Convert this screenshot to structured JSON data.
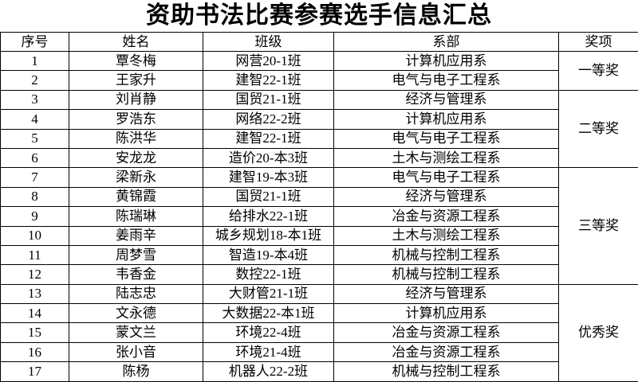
{
  "title": "资助书法比赛参赛选手信息汇总",
  "headers": [
    "序号",
    "姓名",
    "班级",
    "系部",
    "奖项"
  ],
  "rows": [
    {
      "no": "1",
      "name": "覃冬梅",
      "class": "网营20-1班",
      "dept": "计算机应用系"
    },
    {
      "no": "2",
      "name": "王家升",
      "class": "建智22-1班",
      "dept": "电气与电子工程系"
    },
    {
      "no": "3",
      "name": "刘肖静",
      "class": "国贸21-1班",
      "dept": "经济与管理系"
    },
    {
      "no": "4",
      "name": "罗浩东",
      "class": "网络22-2班",
      "dept": "计算机应用系"
    },
    {
      "no": "5",
      "name": "陈洪华",
      "class": "建智22-1班",
      "dept": "电气与电子工程系"
    },
    {
      "no": "6",
      "name": "安龙龙",
      "class": "造价20-本3班",
      "dept": "土木与测绘工程系"
    },
    {
      "no": "7",
      "name": "梁新永",
      "class": "建智19-本3班",
      "dept": "电气与电子工程系"
    },
    {
      "no": "8",
      "name": "黄锦霞",
      "class": "国贸21-1班",
      "dept": "经济与管理系"
    },
    {
      "no": "9",
      "name": "陈瑞琳",
      "class": "给排水22-1班",
      "dept": "冶金与资源工程系"
    },
    {
      "no": "10",
      "name": "姜雨辛",
      "class": "城乡规划18-本1班",
      "dept": "土木与测绘工程系"
    },
    {
      "no": "11",
      "name": "周梦雪",
      "class": "智造19-本4班",
      "dept": "机械与控制工程系"
    },
    {
      "no": "12",
      "name": "韦香金",
      "class": "数控22-1班",
      "dept": "机械与控制工程系"
    },
    {
      "no": "13",
      "name": "陆志忠",
      "class": "大财管21-1班",
      "dept": "经济与管理系"
    },
    {
      "no": "14",
      "name": "文永德",
      "class": "大数据22-本1班",
      "dept": "计算机应用系"
    },
    {
      "no": "15",
      "name": "蒙文兰",
      "class": "环境22-4班",
      "dept": "冶金与资源工程系"
    },
    {
      "no": "16",
      "name": "张小音",
      "class": "环境21-4班",
      "dept": "冶金与资源工程系"
    },
    {
      "no": "17",
      "name": "陈杨",
      "class": "机器人22-2班",
      "dept": "机械与控制工程系"
    }
  ],
  "awards": [
    {
      "label": "一等奖",
      "rows": 2
    },
    {
      "label": "二等奖",
      "rows": 4
    },
    {
      "label": "三等奖",
      "rows": 6
    },
    {
      "label": "优秀奖",
      "rows": 5
    }
  ]
}
